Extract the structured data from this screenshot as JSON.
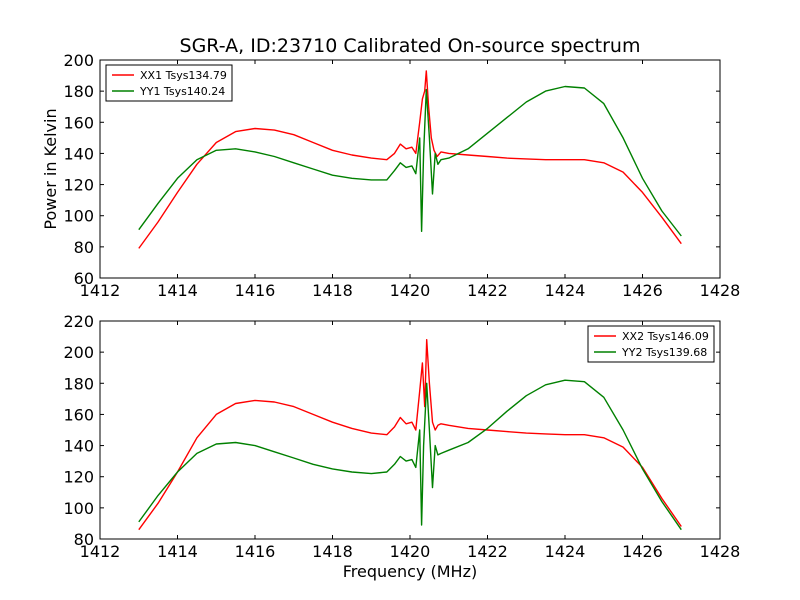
{
  "chart_data": [
    {
      "type": "line",
      "title": "SGR-A, ID:23710 Calibrated On-source spectrum",
      "xlabel": "",
      "ylabel": "Power in Kelvin",
      "xlim": [
        1412,
        1428
      ],
      "ylim": [
        60,
        200
      ],
      "xticks": [
        1412,
        1414,
        1416,
        1418,
        1420,
        1422,
        1424,
        1426,
        1428
      ],
      "yticks": [
        60,
        80,
        100,
        120,
        140,
        160,
        180,
        200
      ],
      "grid": false,
      "legend_position": "top-left",
      "series": [
        {
          "name": "XX1 Tsys134.79",
          "color": "#ff0000",
          "x": [
            1413.0,
            1413.5,
            1414.0,
            1414.5,
            1415.0,
            1415.5,
            1416.0,
            1416.5,
            1417.0,
            1417.5,
            1418.0,
            1418.5,
            1419.0,
            1419.4,
            1419.6,
            1419.75,
            1419.9,
            1420.05,
            1420.15,
            1420.25,
            1420.32,
            1420.38,
            1420.42,
            1420.48,
            1420.55,
            1420.62,
            1420.7,
            1420.8,
            1421.0,
            1421.5,
            1422.0,
            1422.5,
            1423.0,
            1423.5,
            1424.0,
            1424.5,
            1425.0,
            1425.5,
            1426.0,
            1426.5,
            1427.0
          ],
          "y": [
            79,
            96,
            115,
            133,
            147,
            154,
            156,
            155,
            152,
            147,
            142,
            139,
            137,
            136,
            140,
            146,
            143,
            144,
            140,
            160,
            175,
            180,
            193,
            170,
            150,
            142,
            138,
            141,
            140,
            139,
            138,
            137,
            136.5,
            136,
            136,
            136,
            134,
            128,
            115,
            99,
            82
          ]
        },
        {
          "name": "YY1 Tsys140.24",
          "color": "#008000",
          "x": [
            1413.0,
            1413.5,
            1414.0,
            1414.5,
            1415.0,
            1415.5,
            1416.0,
            1416.5,
            1417.0,
            1417.5,
            1418.0,
            1418.5,
            1419.0,
            1419.4,
            1419.6,
            1419.75,
            1419.9,
            1420.05,
            1420.15,
            1420.25,
            1420.3,
            1420.35,
            1420.42,
            1420.5,
            1420.58,
            1420.65,
            1420.72,
            1420.8,
            1421.0,
            1421.5,
            1422.0,
            1422.5,
            1423.0,
            1423.5,
            1424.0,
            1424.5,
            1425.0,
            1425.5,
            1426.0,
            1426.5,
            1427.0
          ],
          "y": [
            91,
            108,
            124,
            136,
            142,
            143,
            141,
            138,
            134,
            130,
            126,
            124,
            123,
            123,
            129,
            134,
            131,
            132,
            127,
            150,
            90,
            140,
            181,
            150,
            114,
            140,
            133,
            136,
            137,
            143,
            153,
            163,
            173,
            180,
            183,
            182,
            172,
            150,
            124,
            103,
            87
          ]
        }
      ]
    },
    {
      "type": "line",
      "title": "",
      "xlabel": "Frequency (MHz)",
      "ylabel": "",
      "xlim": [
        1412,
        1428
      ],
      "ylim": [
        80,
        220
      ],
      "xticks": [
        1412,
        1414,
        1416,
        1418,
        1420,
        1422,
        1424,
        1426,
        1428
      ],
      "yticks": [
        80,
        100,
        120,
        140,
        160,
        180,
        200,
        220
      ],
      "grid": false,
      "legend_position": "top-right",
      "series": [
        {
          "name": "XX2 Tsys146.09",
          "color": "#ff0000",
          "x": [
            1413.0,
            1413.5,
            1414.0,
            1414.5,
            1415.0,
            1415.5,
            1416.0,
            1416.5,
            1417.0,
            1417.5,
            1418.0,
            1418.5,
            1419.0,
            1419.4,
            1419.6,
            1419.75,
            1419.9,
            1420.05,
            1420.15,
            1420.25,
            1420.32,
            1420.38,
            1420.43,
            1420.5,
            1420.58,
            1420.65,
            1420.72,
            1420.8,
            1421.0,
            1421.5,
            1422.0,
            1422.5,
            1423.0,
            1423.5,
            1424.0,
            1424.5,
            1425.0,
            1425.5,
            1426.0,
            1426.5,
            1427.0
          ],
          "y": [
            86,
            103,
            123,
            145,
            160,
            167,
            169,
            168,
            165,
            160,
            155,
            151,
            148,
            147,
            152,
            158,
            154,
            155,
            150,
            175,
            193,
            165,
            208,
            180,
            155,
            150,
            153,
            154,
            153,
            151,
            150,
            149,
            148,
            147.5,
            147,
            147,
            145,
            139,
            126,
            106,
            88
          ]
        },
        {
          "name": "YY2 Tsys139.68",
          "color": "#008000",
          "x": [
            1413.0,
            1413.5,
            1414.0,
            1414.5,
            1415.0,
            1415.5,
            1416.0,
            1416.5,
            1417.0,
            1417.5,
            1418.0,
            1418.5,
            1419.0,
            1419.4,
            1419.6,
            1419.75,
            1419.9,
            1420.05,
            1420.15,
            1420.25,
            1420.3,
            1420.35,
            1420.43,
            1420.5,
            1420.58,
            1420.65,
            1420.72,
            1420.8,
            1421.0,
            1421.5,
            1422.0,
            1422.5,
            1423.0,
            1423.5,
            1424.0,
            1424.5,
            1425.0,
            1425.5,
            1426.0,
            1426.5,
            1427.0
          ],
          "y": [
            91,
            108,
            123,
            135,
            141,
            142,
            140,
            136,
            132,
            128,
            125,
            123,
            122,
            123,
            128,
            133,
            130,
            131,
            126,
            150,
            89,
            140,
            180,
            150,
            113,
            140,
            134,
            135,
            137,
            142,
            151,
            162,
            172,
            179,
            182,
            181,
            171,
            150,
            125,
            104,
            86
          ]
        }
      ]
    }
  ]
}
